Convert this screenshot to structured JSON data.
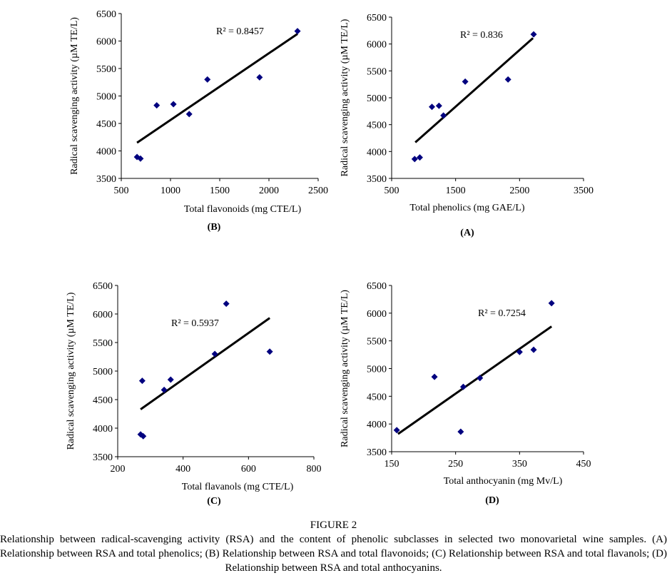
{
  "chart_data": [
    {
      "type": "scatter",
      "panel": "(B)",
      "xlabel": "Total flavonoids (mg CTE/L)",
      "ylabel": "Radical scavenging activity (µM TE/L)",
      "xlim": [
        500,
        2500
      ],
      "ylim": [
        3500,
        6500
      ],
      "xticks": [
        "500",
        "1000",
        "1500",
        "2000",
        "2500"
      ],
      "yticks": [
        "3500",
        "4000",
        "4500",
        "5000",
        "5500",
        "6000",
        "6500"
      ],
      "points": [
        [
          660,
          3890
        ],
        [
          695,
          3860
        ],
        [
          860,
          4830
        ],
        [
          1030,
          4850
        ],
        [
          1190,
          4670
        ],
        [
          1375,
          5300
        ],
        [
          1905,
          5340
        ],
        [
          2290,
          6180
        ]
      ],
      "trendline": [
        [
          660,
          4150
        ],
        [
          2290,
          6130
        ]
      ],
      "r2_label": "R² = 0.8457",
      "grid": false
    },
    {
      "type": "scatter",
      "panel": "(A)",
      "xlabel": "Total phenolics (mg GAE/L)",
      "ylabel": "Radical scavenging activity (µM TE/L)",
      "xlim": [
        500,
        3500
      ],
      "ylim": [
        3500,
        6500
      ],
      "xticks": [
        "500",
        "1500",
        "2500",
        "3500"
      ],
      "yticks": [
        "3500",
        "4000",
        "4500",
        "5000",
        "5500",
        "6000",
        "6500"
      ],
      "points": [
        [
          860,
          3860
        ],
        [
          940,
          3890
        ],
        [
          1130,
          4830
        ],
        [
          1240,
          4850
        ],
        [
          1310,
          4670
        ],
        [
          1650,
          5300
        ],
        [
          2320,
          5340
        ],
        [
          2720,
          6180
        ]
      ],
      "trendline": [
        [
          870,
          4170
        ],
        [
          2710,
          6110
        ]
      ],
      "r2_label": "R² = 0.836",
      "grid": false
    },
    {
      "type": "scatter",
      "panel": "(C)",
      "xlabel": "Total flavanols (mg CTE/L)",
      "ylabel": "Radical scavenging activity (µM TE/L)",
      "xlim": [
        200,
        800
      ],
      "ylim": [
        3500,
        6500
      ],
      "xticks": [
        "200",
        "400",
        "600",
        "800"
      ],
      "yticks": [
        "3500",
        "4000",
        "4500",
        "5000",
        "5500",
        "6000",
        "6500"
      ],
      "points": [
        [
          270,
          3890
        ],
        [
          278,
          3860
        ],
        [
          275,
          4830
        ],
        [
          342,
          4670
        ],
        [
          362,
          4850
        ],
        [
          497,
          5300
        ],
        [
          532,
          6180
        ],
        [
          665,
          5340
        ]
      ],
      "trendline": [
        [
          270,
          4330
        ],
        [
          665,
          5930
        ]
      ],
      "r2_label": "R² = 0.5937",
      "grid": false
    },
    {
      "type": "scatter",
      "panel": "(D)",
      "xlabel": "Total anthocyanin (mg Mv/L)",
      "ylabel": "Radical scavenging activity (µM TE/L)",
      "xlim": [
        150,
        450
      ],
      "ylim": [
        3500,
        6500
      ],
      "xticks": [
        "150",
        "250",
        "350",
        "450"
      ],
      "yticks": [
        "3500",
        "4000",
        "4500",
        "5000",
        "5500",
        "6000",
        "6500"
      ],
      "points": [
        [
          158,
          3890
        ],
        [
          217,
          4850
        ],
        [
          258,
          3860
        ],
        [
          262,
          4670
        ],
        [
          288,
          4830
        ],
        [
          350,
          5300
        ],
        [
          372,
          5340
        ],
        [
          400,
          6180
        ]
      ],
      "trendline": [
        [
          160,
          3820
        ],
        [
          400,
          5760
        ]
      ],
      "r2_label": "R² = 0.7254",
      "grid": false
    }
  ],
  "colors": {
    "marker": "#00007f",
    "trendline": "#000000"
  },
  "caption": {
    "title": "FIGURE 2",
    "text": "Relationship between radical-scavenging activity (RSA) and the content of phenolic subclasses in selected two monovarietal wine samples. (A) Relationship between RSA and total phenolics; (B) Relationship between RSA and total flavonoids; (C) Relationship between RSA and total flavanols; (D) Relationship between RSA and total anthocyanins."
  }
}
